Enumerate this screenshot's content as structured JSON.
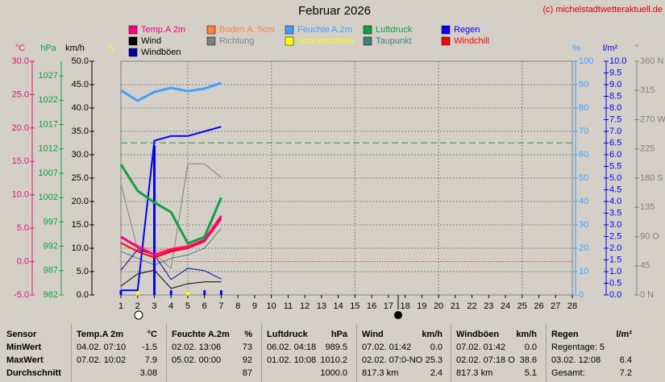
{
  "chart_data": {
    "type": "line",
    "title": "Februar 2026",
    "credit": "(c) michelstadtwetteraktuell.de",
    "x": [
      1,
      2,
      3,
      4,
      5,
      6,
      7
    ],
    "xlim": [
      1,
      28
    ],
    "xticks": [
      1,
      2,
      3,
      4,
      5,
      6,
      7,
      8,
      9,
      10,
      11,
      12,
      13,
      14,
      15,
      16,
      17,
      18,
      19,
      20,
      21,
      22,
      23,
      24,
      25,
      26,
      27,
      28
    ],
    "grid": true,
    "y_axes": [
      {
        "title": "°C",
        "color": "#e0107a",
        "ylim": [
          -5,
          30
        ],
        "yticks": [
          {
            "value": -5,
            "label": "-5.0"
          },
          {
            "value": 0,
            "label": "0.0"
          },
          {
            "value": 5,
            "label": "5.0"
          },
          {
            "value": 10,
            "label": "10.0"
          },
          {
            "value": 15,
            "label": "15.0"
          },
          {
            "value": 20,
            "label": "20.0"
          },
          {
            "value": 25,
            "label": "25.0"
          },
          {
            "value": 30,
            "label": "30.0"
          }
        ]
      },
      {
        "title": "hPa",
        "color": "#10a040",
        "ylim": [
          982,
          1030
        ],
        "yticks": [
          982,
          987,
          992,
          997,
          1002,
          1007,
          1012,
          1017,
          1022,
          1027
        ]
      },
      {
        "title": "km/h",
        "color": "#000000",
        "ylim": [
          0,
          50
        ],
        "yticks": [
          {
            "value": 0,
            "label": "0.0"
          },
          {
            "value": 5,
            "label": "5.0"
          },
          {
            "value": 10,
            "label": "10.0"
          },
          {
            "value": 15,
            "label": "15.0"
          },
          {
            "value": 20,
            "label": "20.0"
          },
          {
            "value": 25,
            "label": "25.0"
          },
          {
            "value": 30,
            "label": "30.0"
          },
          {
            "value": 35,
            "label": "35.0"
          },
          {
            "value": 40,
            "label": "40.0"
          },
          {
            "value": 45,
            "label": "45.0"
          },
          {
            "value": 50,
            "label": "50.0"
          }
        ]
      },
      {
        "title": "h",
        "color": "#ffff00"
      },
      {
        "title": "%",
        "color": "#40a0ff",
        "ylim": [
          0,
          100
        ],
        "yticks": [
          0,
          10,
          20,
          30,
          40,
          50,
          60,
          70,
          80,
          90,
          100
        ]
      },
      {
        "title": "l/m²",
        "color": "#0000ff",
        "ylim": [
          0,
          10
        ],
        "yticks": [
          {
            "value": 0,
            "label": "0.0"
          },
          {
            "value": 0.5,
            "label": "0.5"
          },
          {
            "value": 1,
            "label": "1.0"
          },
          {
            "value": 1.5,
            "label": "1.5"
          },
          {
            "value": 2,
            "label": "2.0"
          },
          {
            "value": 2.5,
            "label": "2.5"
          },
          {
            "value": 3,
            "label": "3.0"
          },
          {
            "value": 3.5,
            "label": "3.5"
          },
          {
            "value": 4,
            "label": "4.0"
          },
          {
            "value": 4.5,
            "label": "4.5"
          },
          {
            "value": 5,
            "label": "5.0"
          },
          {
            "value": 5.5,
            "label": "5.5"
          },
          {
            "value": 6,
            "label": "6.0"
          },
          {
            "value": 6.5,
            "label": "6.5"
          },
          {
            "value": 7,
            "label": "7.0"
          },
          {
            "value": 7.5,
            "label": "7.5"
          },
          {
            "value": 8,
            "label": "8.0"
          },
          {
            "value": 8.5,
            "label": "8.5"
          },
          {
            "value": 9,
            "label": "9.0"
          },
          {
            "value": 9.5,
            "label": "9.5"
          },
          {
            "value": 10,
            "label": "10.0"
          }
        ]
      },
      {
        "title": "°",
        "color": "#808080",
        "ylim": [
          0,
          360
        ],
        "yticks": [
          {
            "value": 0,
            "label": "0 N"
          },
          {
            "value": 45,
            "label": "45"
          },
          {
            "value": 90,
            "label": "90 O"
          },
          {
            "value": 135,
            "label": "135"
          },
          {
            "value": 180,
            "label": "180 S"
          },
          {
            "value": 225,
            "label": "225"
          },
          {
            "value": 270,
            "label": "270 W"
          },
          {
            "value": 315,
            "label": "315"
          },
          {
            "value": 360,
            "label": "360 N"
          }
        ]
      }
    ],
    "reference_lines": [
      {
        "axis": "°C",
        "value": 0,
        "color": "#ff0000",
        "style": "dotted"
      },
      {
        "axis": "hPa",
        "value": 1013.25,
        "color": "#10a040",
        "style": "dashed"
      }
    ],
    "series": [
      {
        "name": "Temp.A 2m",
        "color": "#ff0080",
        "axis": "°C",
        "width": 3,
        "values": [
          3.7,
          2.2,
          1.0,
          1.8,
          2.2,
          3.2,
          6.8
        ]
      },
      {
        "name": "Boden A. 5cm",
        "color": "#ff8040",
        "axis": "°C",
        "width": 1,
        "values": [
          3.5,
          2.5,
          1.5,
          2.0,
          2.5,
          3.5,
          7.0
        ]
      },
      {
        "name": "Feuchte A.2m",
        "color": "#40a0ff",
        "axis": "%",
        "width": 3,
        "values": [
          87.6,
          83.1,
          86.9,
          88.6,
          87.2,
          88.3,
          90.7
        ]
      },
      {
        "name": "Luftdruck",
        "color": "#10a040",
        "axis": "hPa",
        "width": 3,
        "values": [
          1008.8,
          1003.4,
          1001.0,
          999.0,
          992.6,
          993.9,
          1002.0
        ]
      },
      {
        "name": "Regen",
        "color": "#0000ff",
        "axis": "l/m²",
        "width": 2,
        "values": [
          0.2,
          0.2,
          6.6,
          6.8,
          6.8,
          7.0,
          7.2
        ],
        "bars": [
          0.2,
          0,
          6.4,
          0.2,
          0,
          0.2,
          0.2
        ]
      },
      {
        "name": "Wind",
        "color": "#000000",
        "axis": "km/h",
        "width": 1,
        "values": [
          1.9,
          4.5,
          5.3,
          1.4,
          2.4,
          2.8,
          2.8
        ]
      },
      {
        "name": "Richtung",
        "color": "#808080",
        "axis": "°",
        "width": 1,
        "values": [
          171,
          70,
          63,
          41,
          202,
          202,
          181
        ]
      },
      {
        "name": "Sonnenschein",
        "color": "#ffff00",
        "axis": "km/h",
        "marker": "dot",
        "values": [
          null,
          0,
          null,
          null,
          0,
          null,
          null
        ]
      },
      {
        "name": "Taupunkt",
        "color": "#408080",
        "axis": "°C",
        "width": 1,
        "values": [
          1.5,
          0.5,
          -0.5,
          0.5,
          1.0,
          2.0,
          5.0
        ]
      },
      {
        "name": "Windchill",
        "color": "#ff0000",
        "axis": "°C",
        "width": 2,
        "values": [
          2.8,
          1.5,
          0.6,
          1.5,
          2.0,
          3.0,
          6.4
        ]
      },
      {
        "name": "Windböen",
        "color": "#0000a0",
        "axis": "km/h",
        "width": 1,
        "values": [
          5.3,
          9.7,
          8.6,
          3.3,
          5.7,
          5.2,
          3.4
        ]
      }
    ]
  },
  "table": {
    "sensor": [
      "Sensor",
      "MinWert",
      "MaxWert",
      "Durchschnitt"
    ],
    "columns": [
      {
        "header": "Temp.A 2m",
        "unit": "°C",
        "rows": [
          {
            "left": "04.02.  07:10",
            "right": "-1.5"
          },
          {
            "left": "07.02.  10:02",
            "right": "7.9"
          },
          {
            "right": "3.08"
          }
        ]
      },
      {
        "header": "Feuchte A.2m",
        "unit": "%",
        "rows": [
          {
            "left": "02.02.  13:06",
            "right": "73"
          },
          {
            "left": "05.02.  00:00",
            "right": "92"
          },
          {
            "right": "87"
          }
        ]
      },
      {
        "header": "Luftdruck",
        "unit": "hPa",
        "rows": [
          {
            "left": "06.02.  04:18",
            "right": "989.5"
          },
          {
            "left": "01.02.  10:08",
            "right": "1010.2"
          },
          {
            "right": "1000.0"
          }
        ]
      },
      {
        "header": "Wind",
        "unit": "km/h",
        "rows": [
          {
            "left": "07.02.  01:42",
            "right": "0.0"
          },
          {
            "left": "02.02.  07:0-NO",
            "right": "25.3"
          },
          {
            "left": "817.3 km",
            "right": "2.4"
          }
        ]
      },
      {
        "header": "Windböen",
        "unit": "km/h",
        "rows": [
          {
            "left": "07.02.  01:42",
            "right": "0.0"
          },
          {
            "left": "02.02.  07:18  O",
            "right": "38.6"
          },
          {
            "left": "817.3 km",
            "right": "5.1"
          }
        ]
      },
      {
        "header": "Regen",
        "unit": "l/m²",
        "rows": [
          {
            "left": "Regentage: 5"
          },
          {
            "left": "03.02.  12:08",
            "right": "6.4"
          },
          {
            "left": "Gesamt:",
            "right": "7.2"
          }
        ]
      }
    ]
  }
}
